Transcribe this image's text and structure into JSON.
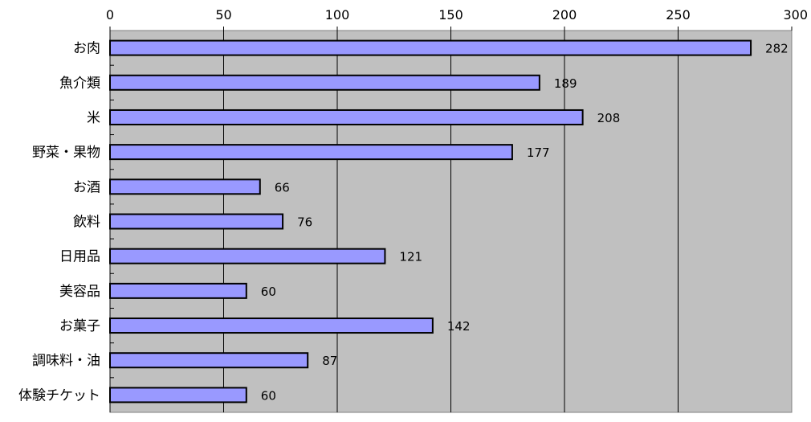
{
  "chart_data": {
    "type": "bar",
    "orientation": "horizontal",
    "categories": [
      "お肉",
      "魚介類",
      "米",
      "野菜・果物",
      "お酒",
      "飲料",
      "日用品",
      "美容品",
      "お菓子",
      "調味料・油",
      "体験チケット"
    ],
    "values": [
      282,
      189,
      208,
      177,
      66,
      76,
      121,
      60,
      142,
      87,
      60
    ],
    "xlim": [
      0,
      300
    ],
    "xticks": [
      0,
      50,
      100,
      150,
      200,
      250,
      300
    ],
    "x_axis_position": "top",
    "grid": true,
    "data_labels": true,
    "legend": "none"
  },
  "colors": {
    "bar_fill": "#9999ff",
    "bar_stroke": "#000000",
    "plot_background": "#c0c0c0",
    "gridline": "#000000"
  }
}
